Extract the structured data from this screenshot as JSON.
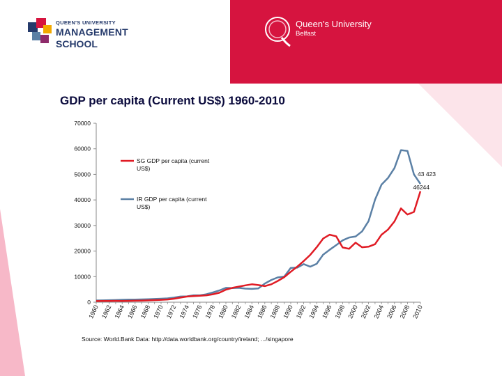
{
  "header": {
    "qums_logo": {
      "line1": "QUEEN'S UNIVERSITY",
      "line2": "MANAGEMENT",
      "line3": "SCHOOL"
    },
    "qub_logo": {
      "name": "Queen's University",
      "city": "Belfast"
    }
  },
  "slide": {
    "title": "GDP per capita (Current US$) 1960-2010",
    "source": "Source: World.Bank Data: http://data.worldbank.org/country/ireland; .../singapore"
  },
  "colors": {
    "sg": "#e01b24",
    "ir": "#5b80a5",
    "banner": "#d6143f",
    "accent_pink": "#f7b8c8",
    "navy": "#253a6b"
  },
  "chart_data": {
    "type": "line",
    "title": "GDP per capita (Current US$) 1960-2010",
    "xlabel": "",
    "ylabel": "",
    "ylim": [
      0,
      70000
    ],
    "y_ticks": [
      "0",
      "10000",
      "20000",
      "30000",
      "40000",
      "50000",
      "60000",
      "70000"
    ],
    "x": [
      1960,
      1961,
      1962,
      1963,
      1964,
      1965,
      1966,
      1967,
      1968,
      1969,
      1970,
      1971,
      1972,
      1973,
      1974,
      1975,
      1976,
      1977,
      1978,
      1979,
      1980,
      1981,
      1982,
      1983,
      1984,
      1985,
      1986,
      1987,
      1988,
      1989,
      1990,
      1991,
      1992,
      1993,
      1994,
      1995,
      1996,
      1997,
      1998,
      1999,
      2000,
      2001,
      2002,
      2003,
      2004,
      2005,
      2006,
      2007,
      2008,
      2009,
      2010
    ],
    "x_tick_labels": [
      "1960",
      "1962",
      "1964",
      "1966",
      "1968",
      "1970",
      "1972",
      "1974",
      "1976",
      "1978",
      "1980",
      "1982",
      "1984",
      "1986",
      "1988",
      "1990",
      "1992",
      "1994",
      "1996",
      "1998",
      "2000",
      "2002",
      "2004",
      "2006",
      "2008",
      "2010"
    ],
    "series": [
      {
        "name": "SG GDP per capita (current US$)",
        "line1": "SG GDP per capita (current",
        "line2": "US$)",
        "values": [
          430,
          450,
          480,
          520,
          500,
          520,
          570,
          620,
          710,
          820,
          920,
          1070,
          1350,
          1800,
          2200,
          2400,
          2500,
          2700,
          3100,
          3700,
          4900,
          5600,
          6100,
          6600,
          7000,
          6700,
          6300,
          7000,
          8300,
          9800,
          11900,
          13900,
          16100,
          18500,
          21500,
          24900,
          26400,
          25800,
          21400,
          20900,
          23300,
          21500,
          21700,
          22700,
          26400,
          28400,
          31600,
          36700,
          34300,
          35300,
          43423
        ]
      },
      {
        "name": "IR GDP per capita (current US$)",
        "line1": "IR GDP per capita (current",
        "line2": "US$)",
        "values": [
          690,
          720,
          780,
          840,
          940,
          1000,
          1040,
          1100,
          1150,
          1250,
          1350,
          1500,
          1800,
          2200,
          2300,
          2700,
          2700,
          3100,
          3800,
          4600,
          5600,
          5500,
          5600,
          5300,
          5200,
          5400,
          7300,
          8700,
          9700,
          10000,
          13400,
          13500,
          14900,
          13900,
          15000,
          18600,
          20500,
          22300,
          24200,
          25300,
          25700,
          27700,
          31700,
          40100,
          46000,
          48600,
          52500,
          59500,
          59200,
          50000,
          46244
        ]
      }
    ],
    "data_labels": [
      {
        "series": "SG GDP per capita (current US$)",
        "text": "43 423"
      },
      {
        "series": "IR GDP per capita (current US$)",
        "text": "46244"
      }
    ]
  }
}
